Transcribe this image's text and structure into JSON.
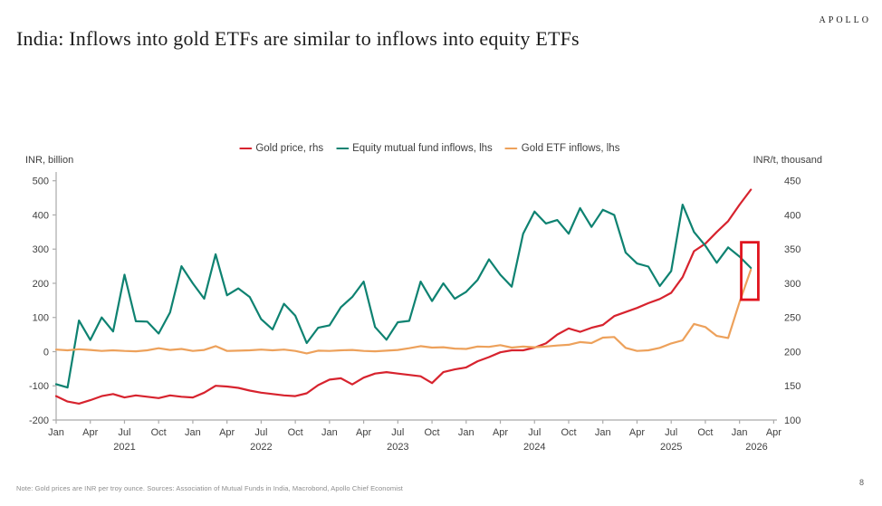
{
  "logo": "APOLLO",
  "page_number": "8",
  "title": "India: Inflows into gold ETFs are similar to inflows into equity ETFs",
  "note": "Note: Gold prices are INR per troy ounce. Sources: Association of Mutual Funds in India, Macrobond, Apollo Chief Economist",
  "left_axis_header": "INR, billion",
  "right_axis_header": "INR/t, thousand",
  "legend": [
    {
      "label": "Gold price, rhs",
      "color": "#d7232e"
    },
    {
      "label": "Equity mutual fund inflows, lhs",
      "color": "#0e8271"
    },
    {
      "label": "Gold ETF inflows, lhs",
      "color": "#eda15b"
    }
  ],
  "colors": {
    "axis_line": "#ababab",
    "tick_text": "#404040",
    "annotation_red": "#e0141e"
  },
  "chart_data": {
    "type": "line",
    "title": "India: Inflows into gold ETFs are similar to inflows into equity ETFs",
    "x_start": "2021-01",
    "x_frequency": "monthly",
    "x_axis": {
      "quarter_labels": [
        "Jan",
        "Apr",
        "Jul",
        "Oct"
      ],
      "years": [
        "2021",
        "2022",
        "2023",
        "2024",
        "2025",
        "2026"
      ],
      "year_center_months": [
        6,
        18,
        30,
        42,
        54,
        61.5
      ],
      "total_months": 63,
      "tick_every_months": 3
    },
    "left_axis": {
      "label": "INR, billion",
      "min": -200,
      "max": 500,
      "step": 100
    },
    "right_axis": {
      "label": "INR/t, thousand",
      "min": 100,
      "max": 450,
      "step": 50
    },
    "legend_position": "top-center",
    "grid": false,
    "series": [
      {
        "name": "Gold price, rhs",
        "axis": "right",
        "color": "#d7232e",
        "values": [
          135,
          127,
          124,
          129,
          135,
          138,
          133,
          136,
          134,
          132,
          136,
          134,
          133,
          140,
          150,
          149,
          147,
          143,
          140,
          138,
          136,
          135,
          139,
          151,
          159,
          161,
          152,
          162,
          168,
          170,
          168,
          166,
          164,
          154,
          170,
          174,
          177,
          186,
          192,
          199,
          202,
          202,
          206,
          212,
          225,
          234,
          229,
          235,
          239,
          252,
          258,
          264,
          271,
          277,
          286,
          309,
          347,
          358,
          375,
          391,
          415,
          437
        ]
      },
      {
        "name": "Equity mutual fund inflows, lhs",
        "axis": "left",
        "color": "#0e8271",
        "values": [
          -95,
          -105,
          91,
          34,
          100,
          59,
          225,
          89,
          88,
          53,
          115,
          250,
          200,
          155,
          285,
          165,
          185,
          160,
          95,
          65,
          140,
          105,
          25,
          70,
          77,
          130,
          160,
          205,
          72,
          35,
          86,
          90,
          205,
          148,
          200,
          155,
          175,
          210,
          270,
          225,
          190,
          345,
          410,
          375,
          385,
          345,
          420,
          365,
          415,
          400,
          290,
          258,
          249,
          192,
          236,
          430,
          350,
          310,
          260,
          305,
          278,
          245
        ]
      },
      {
        "name": "Gold ETF inflows, lhs",
        "axis": "left",
        "color": "#eda15b",
        "values": [
          6,
          4,
          7,
          5,
          2,
          4,
          2,
          1,
          4,
          10,
          5,
          8,
          2,
          5,
          16,
          2,
          3,
          4,
          6,
          4,
          6,
          2,
          -5,
          3,
          2,
          4,
          5,
          2,
          1,
          3,
          5,
          10,
          16,
          12,
          13,
          9,
          8,
          15,
          14,
          19,
          12,
          15,
          13,
          15,
          18,
          20,
          28,
          25,
          41,
          43,
          11,
          2,
          4,
          11,
          24,
          33,
          81,
          72,
          46,
          40,
          145,
          240
        ]
      }
    ],
    "annotation_box": {
      "description": "red highlight box around latest equity and gold ETF inflow datapoints",
      "color": "#e0141e",
      "month_start": 60.15,
      "month_end": 61.65,
      "value_top_lhs": 320,
      "value_bottom_lhs": 152
    }
  }
}
